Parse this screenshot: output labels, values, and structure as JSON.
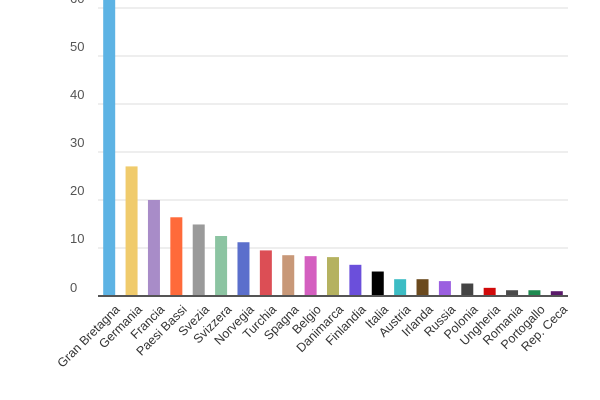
{
  "chart_data": {
    "type": "bar",
    "title": "",
    "xlabel": "",
    "ylabel": "",
    "ylim": [
      0,
      60
    ],
    "yticks": [
      0,
      10,
      20,
      30,
      40,
      50,
      60
    ],
    "grid": true,
    "categories": [
      "Gran Bretagna",
      "Germania",
      "Francia",
      "Paesi Bassi",
      "Svezia",
      "Svizzera",
      "Norvegia",
      "Turchia",
      "Spagna",
      "Belgio",
      "Danimarca",
      "Finlandia",
      "Italia",
      "Austria",
      "Irlanda",
      "Russia",
      "Polonia",
      "Ungheria",
      "Romania",
      "Portogallo",
      "Rep. Ceca"
    ],
    "values": [
      62,
      27.0,
      20.0,
      16.4,
      14.9,
      12.5,
      11.2,
      9.5,
      8.5,
      8.3,
      8.1,
      6.5,
      5.1,
      3.5,
      3.5,
      3.1,
      2.6,
      1.7,
      1.2,
      1.2,
      1.0
    ],
    "colors": [
      "#5DB3E4",
      "#F0CB6C",
      "#A88CC8",
      "#FF6A3A",
      "#9A9A9A",
      "#8CC4A2",
      "#5B6FCC",
      "#DC4E55",
      "#C89878",
      "#D45FC0",
      "#B5B260",
      "#6B4FDB",
      "#000000",
      "#3CBCC4",
      "#6B4A1E",
      "#9B5FE0",
      "#444444",
      "#D10A0A",
      "#4A4A4A",
      "#1E8A50",
      "#5A1A6A"
    ]
  }
}
